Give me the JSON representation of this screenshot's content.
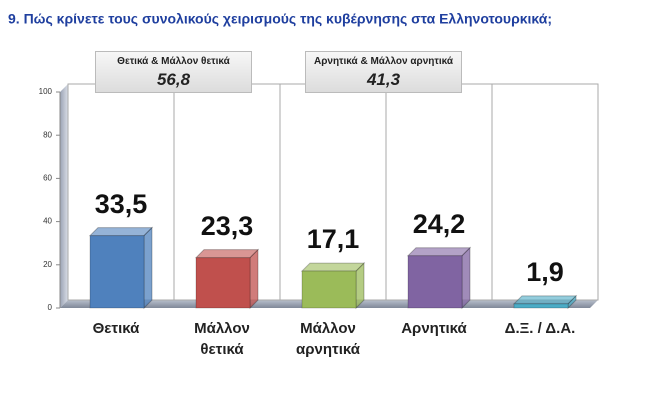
{
  "chart_data": {
    "type": "bar",
    "title": "9. Πώς κρίνετε τους συνολικούς χειρισμούς της κυβέρνησης στα Ελληνοτουρκικά;",
    "categories": [
      "Θετικά",
      "Μάλλον θετικά",
      "Μάλλον αρνητικά",
      "Αρνητικά",
      "Δ.Ξ. / Δ.Α."
    ],
    "values": [
      33.5,
      23.3,
      17.1,
      24.2,
      1.9
    ],
    "value_labels": [
      "33,5",
      "23,3",
      "17,1",
      "24,2",
      "1,9"
    ],
    "colors": [
      "#4f81bd",
      "#c0504d",
      "#9bbb59",
      "#8064a2",
      "#4bacc6"
    ],
    "ylim": [
      0,
      100
    ],
    "yticks": [
      0,
      20,
      40,
      60,
      80,
      100
    ],
    "grid": "x",
    "annotations": [
      {
        "label": "Θετικά & Μάλλον θετικά",
        "value": "56,8"
      },
      {
        "label": "Αρνητικά & Μάλλον αρνητικά",
        "value": "41,3"
      }
    ]
  }
}
